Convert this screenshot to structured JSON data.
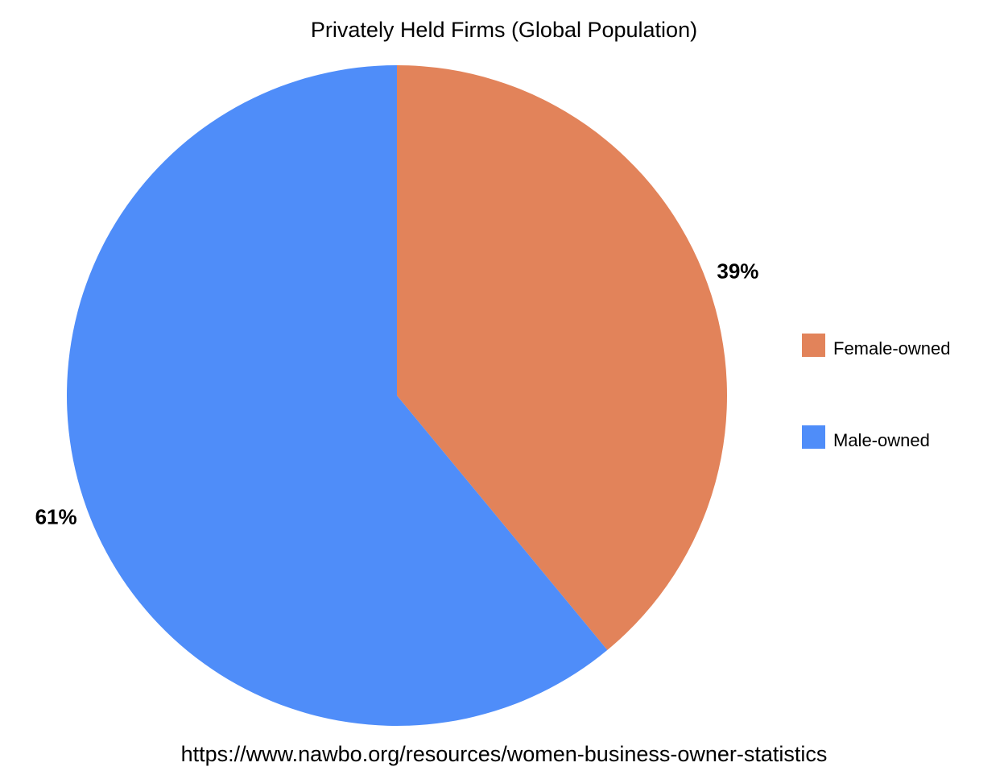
{
  "chart_data": {
    "type": "pie",
    "title": "Privately Held Firms (Global Population)",
    "categories": [
      "Female-owned",
      "Male-owned"
    ],
    "values": [
      39,
      61
    ],
    "value_labels": [
      "39%",
      "61%"
    ],
    "colors": [
      "#e2835a",
      "#4f8df9"
    ],
    "legend": "right",
    "caption": "https://www.nawbo.org/resources/women-business-owner-statistics"
  }
}
